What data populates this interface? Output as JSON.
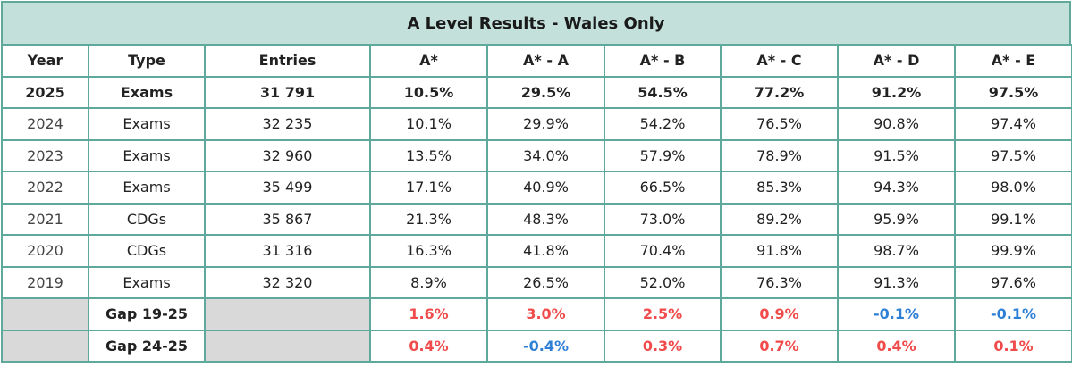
{
  "title": "A Level Results - Wales Only",
  "headers": [
    "Year",
    "Type",
    "Entries",
    "A*",
    "A* - A",
    "A* - B",
    "A* - C",
    "A* - D",
    "A* - E"
  ],
  "rows": [
    [
      "2025",
      "Exams",
      "31 791",
      "10.5%",
      "29.5%",
      "54.5%",
      "77.2%",
      "91.2%",
      "97.5%"
    ],
    [
      "2024",
      "Exams",
      "32 235",
      "10.1%",
      "29.9%",
      "54.2%",
      "76.5%",
      "90.8%",
      "97.4%"
    ],
    [
      "2023",
      "Exams",
      "32 960",
      "13.5%",
      "34.0%",
      "57.9%",
      "78.9%",
      "91.5%",
      "97.5%"
    ],
    [
      "2022",
      "Exams",
      "35 499",
      "17.1%",
      "40.9%",
      "66.5%",
      "85.3%",
      "94.3%",
      "98.0%"
    ],
    [
      "2021",
      "CDGs",
      "35 867",
      "21.3%",
      "48.3%",
      "73.0%",
      "89.2%",
      "95.9%",
      "99.1%"
    ],
    [
      "2020",
      "CDGs",
      "31 316",
      "16.3%",
      "41.8%",
      "70.4%",
      "91.8%",
      "98.7%",
      "99.9%"
    ],
    [
      "2019",
      "Exams",
      "32 320",
      "8.9%",
      "26.5%",
      "52.0%",
      "76.3%",
      "91.3%",
      "97.6%"
    ]
  ],
  "gaps": [
    {
      "label": "Gap 19-25",
      "values": [
        "1.6%",
        "3.0%",
        "2.5%",
        "0.9%",
        "-0.1%",
        "-0.1%"
      ]
    },
    {
      "label": "Gap 24-25",
      "values": [
        "0.4%",
        "-0.4%",
        "0.3%",
        "0.7%",
        "0.4%",
        "0.1%"
      ]
    }
  ],
  "colors": {
    "header_fill": "#c4e0da",
    "border": "#5fa89c",
    "positive": "#f04a4a",
    "negative": "#2e7fd6",
    "blank_cell": "#d9d9d9"
  }
}
